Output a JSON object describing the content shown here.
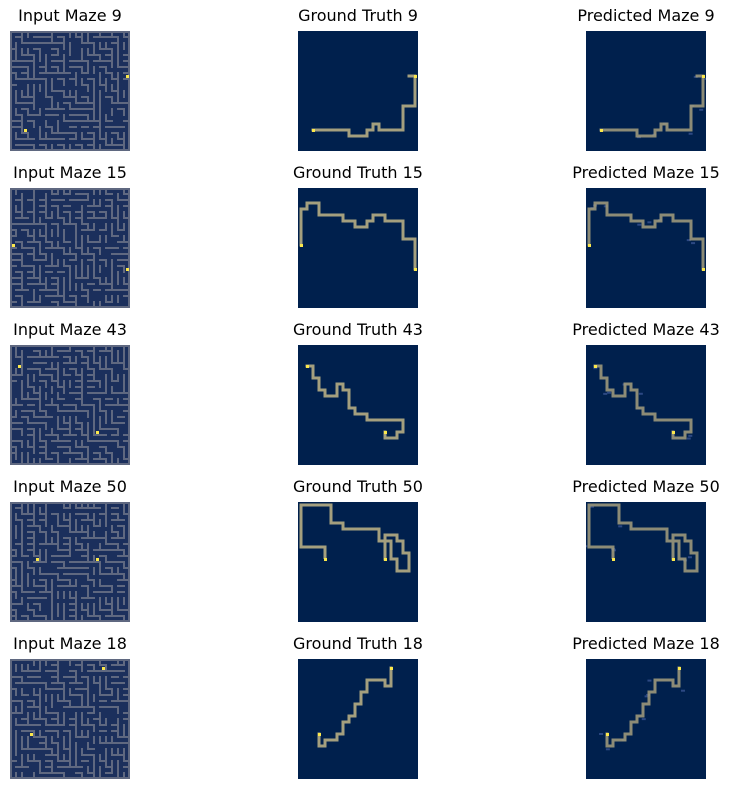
{
  "colors": {
    "background": "#00204d",
    "maze_bg": "#1b2f5c",
    "wall": "#5f6880",
    "path": "#a49f7e",
    "endpoint": "#fbe84c",
    "faint": "#3f5a9a"
  },
  "rows": [
    {
      "input_title": "Input Maze 9",
      "gt_title": "Ground Truth 9",
      "pred_title": "Predicted Maze 9",
      "start": [
        2,
        16
      ],
      "end": [
        19,
        7
      ],
      "path": [
        [
          2,
          16
        ],
        [
          8,
          16
        ],
        [
          8,
          17
        ],
        [
          11,
          17
        ],
        [
          11,
          16
        ],
        [
          12,
          16
        ],
        [
          12,
          15
        ],
        [
          13,
          15
        ],
        [
          13,
          16
        ],
        [
          17,
          16
        ],
        [
          17,
          12
        ],
        [
          19,
          12
        ],
        [
          19,
          7
        ],
        [
          18,
          7
        ]
      ]
    },
    {
      "input_title": "Input Maze 15",
      "gt_title": "Ground Truth 15",
      "pred_title": "Predicted Maze 15",
      "start": [
        0,
        9
      ],
      "end": [
        19,
        13
      ],
      "path": [
        [
          0,
          9
        ],
        [
          0,
          3
        ],
        [
          1,
          3
        ],
        [
          1,
          2
        ],
        [
          3,
          2
        ],
        [
          3,
          4
        ],
        [
          7,
          4
        ],
        [
          7,
          5
        ],
        [
          9,
          5
        ],
        [
          9,
          6
        ],
        [
          11,
          6
        ],
        [
          11,
          5
        ],
        [
          12,
          5
        ],
        [
          12,
          4
        ],
        [
          14,
          4
        ],
        [
          14,
          5
        ],
        [
          17,
          5
        ],
        [
          17,
          8
        ],
        [
          19,
          8
        ],
        [
          19,
          13
        ]
      ]
    },
    {
      "input_title": "Input Maze 43",
      "gt_title": "Ground Truth 43",
      "pred_title": "Predicted Maze 43",
      "start": [
        1,
        3
      ],
      "end": [
        14,
        14
      ],
      "path": [
        [
          1,
          3
        ],
        [
          2,
          3
        ],
        [
          2,
          5
        ],
        [
          3,
          5
        ],
        [
          3,
          7
        ],
        [
          4,
          7
        ],
        [
          4,
          8
        ],
        [
          6,
          8
        ],
        [
          6,
          6
        ],
        [
          7,
          6
        ],
        [
          7,
          7
        ],
        [
          8,
          7
        ],
        [
          8,
          10
        ],
        [
          9,
          10
        ],
        [
          9,
          11
        ],
        [
          11,
          11
        ],
        [
          11,
          12
        ],
        [
          17,
          12
        ],
        [
          17,
          14
        ],
        [
          16,
          14
        ],
        [
          16,
          15
        ],
        [
          14,
          15
        ],
        [
          14,
          14
        ]
      ]
    },
    {
      "input_title": "Input Maze 50",
      "gt_title": "Ground Truth 50",
      "pred_title": "Predicted Maze 50",
      "start": [
        4,
        9
      ],
      "end": [
        14,
        9
      ],
      "path": [
        [
          0,
          0
        ],
        [
          0,
          7
        ],
        [
          4,
          7
        ],
        [
          4,
          9
        ],
        [
          4,
          7
        ],
        [
          0,
          7
        ],
        [
          0,
          0
        ],
        [
          5,
          0
        ],
        [
          5,
          3
        ],
        [
          7,
          3
        ],
        [
          7,
          4
        ],
        [
          13,
          4
        ],
        [
          13,
          6
        ],
        [
          15,
          6
        ],
        [
          15,
          9
        ],
        [
          16,
          9
        ],
        [
          16,
          11
        ],
        [
          18,
          11
        ],
        [
          18,
          8
        ],
        [
          17,
          8
        ],
        [
          17,
          6
        ],
        [
          16,
          6
        ],
        [
          16,
          5
        ],
        [
          14,
          5
        ],
        [
          14,
          9
        ]
      ]
    },
    {
      "input_title": "Input Maze 18",
      "gt_title": "Ground Truth 18",
      "pred_title": "Predicted Maze 18",
      "start": [
        3,
        12
      ],
      "end": [
        15,
        1
      ],
      "path": [
        [
          15,
          1
        ],
        [
          15,
          4
        ],
        [
          14,
          4
        ],
        [
          14,
          3
        ],
        [
          11,
          3
        ],
        [
          11,
          5
        ],
        [
          10,
          5
        ],
        [
          10,
          7
        ],
        [
          9,
          7
        ],
        [
          9,
          9
        ],
        [
          8,
          9
        ],
        [
          8,
          10
        ],
        [
          7,
          10
        ],
        [
          7,
          12
        ],
        [
          6,
          12
        ],
        [
          6,
          13
        ],
        [
          4,
          13
        ],
        [
          4,
          14
        ],
        [
          3,
          14
        ],
        [
          3,
          12
        ]
      ]
    }
  ]
}
